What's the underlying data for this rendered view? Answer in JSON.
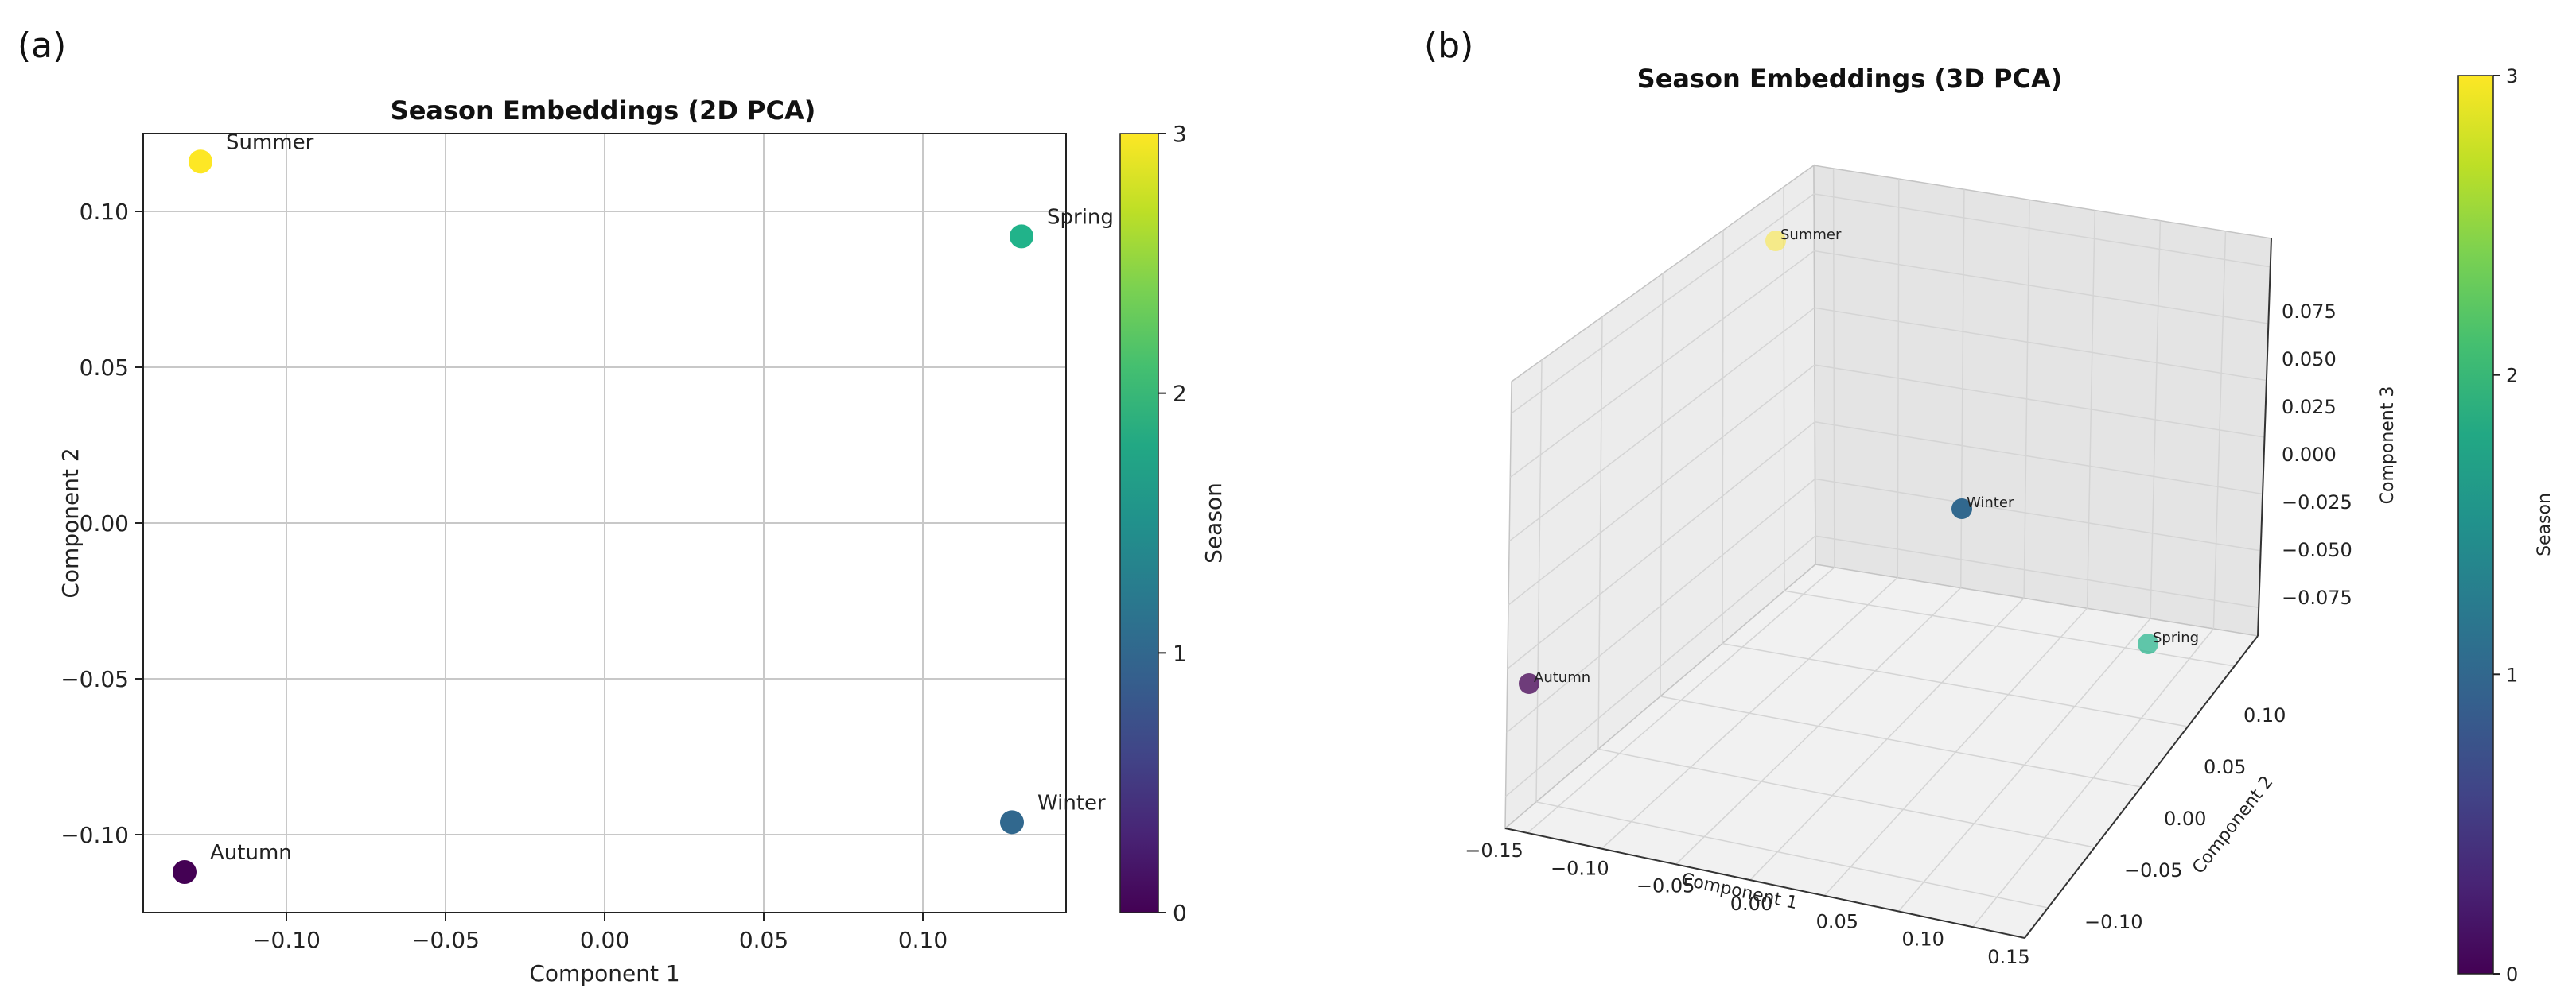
{
  "chart_data": [
    {
      "type": "scatter",
      "panel_label": "(a)",
      "title": "Season Embeddings (2D PCA)",
      "xlabel": "Component 1",
      "ylabel": "Component 2",
      "xlim": [
        -0.145,
        0.145
      ],
      "ylim": [
        -0.125,
        0.125
      ],
      "xticks": [
        -0.1,
        -0.05,
        0.0,
        0.05,
        0.1
      ],
      "xtick_labels": [
        "−0.10",
        "−0.05",
        "0.00",
        "0.05",
        "0.10"
      ],
      "yticks": [
        -0.1,
        -0.05,
        0.0,
        0.05,
        0.1
      ],
      "ytick_labels": [
        "−0.10",
        "−0.05",
        "0.00",
        "0.05",
        "0.10"
      ],
      "grid": true,
      "points": [
        {
          "label": "Summer",
          "x": -0.127,
          "y": 0.116,
          "season": 3
        },
        {
          "label": "Spring",
          "x": 0.131,
          "y": 0.092,
          "season": 2
        },
        {
          "label": "Winter",
          "x": 0.128,
          "y": -0.096,
          "season": 1
        },
        {
          "label": "Autumn",
          "x": -0.132,
          "y": -0.112,
          "season": 0
        }
      ],
      "colorbar": {
        "label": "Season",
        "min": 0,
        "max": 3,
        "ticks": [
          "0",
          "1",
          "2",
          "3"
        ]
      }
    },
    {
      "type": "scatter3d",
      "panel_label": "(b)",
      "title": "Season Embeddings (3D PCA)",
      "xlabel": "Component 1",
      "ylabel": "Component 2",
      "zlabel": "Component 3",
      "xtick_labels": [
        "−0.15",
        "−0.10",
        "−0.05",
        "0.00",
        "0.05",
        "0.10",
        "0.15"
      ],
      "ytick_labels": [
        "−0.10",
        "−0.05",
        "0.00",
        "0.05",
        "0.10"
      ],
      "ztick_labels": [
        "−0.075",
        "−0.050",
        "−0.025",
        "0.000",
        "0.025",
        "0.050",
        "0.075"
      ],
      "grid": true,
      "points": [
        {
          "label": "Summer",
          "season": 3
        },
        {
          "label": "Winter",
          "season": 1
        },
        {
          "label": "Spring",
          "season": 2
        },
        {
          "label": "Autumn",
          "season": 0
        }
      ],
      "colorbar": {
        "label": "Season",
        "min": 0,
        "max": 3,
        "ticks": [
          "0",
          "1",
          "2",
          "3"
        ]
      }
    }
  ],
  "colors": {
    "season_0": "#440154",
    "season_1": "#31688e",
    "season_2": "#21b38a",
    "season_3": "#fde725"
  }
}
